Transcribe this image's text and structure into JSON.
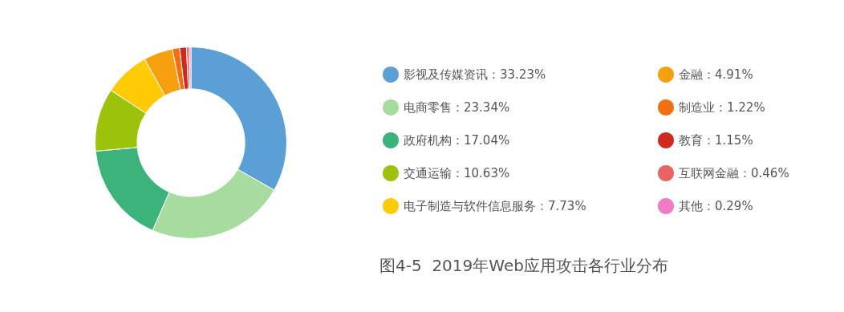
{
  "chart_data": {
    "type": "donut",
    "title": "图4-5  2019年Web应用攻击各行业分布",
    "categories": [
      "影视及传媒资讯：33.23%",
      "电商零售：23.34%",
      "政府机构：17.04%",
      "交通运输：10.63%",
      "电子制造与软件信息服务：7.73%",
      "金融：4.91%",
      "制造业：1.22%",
      "教育：1.15%",
      "互联网金融：0.46%",
      "其他：0.29%"
    ],
    "values": [
      33.23,
      23.34,
      17.04,
      10.63,
      7.73,
      4.91,
      1.22,
      1.15,
      0.46,
      0.29
    ],
    "colors": [
      "#5b9fd7",
      "#a8dba0",
      "#3cb37b",
      "#9dc20a",
      "#fecb05",
      "#f6a00f",
      "#f07012",
      "#cf2a1e",
      "#ea6262",
      "#f07ac4"
    ],
    "legend": "right"
  }
}
